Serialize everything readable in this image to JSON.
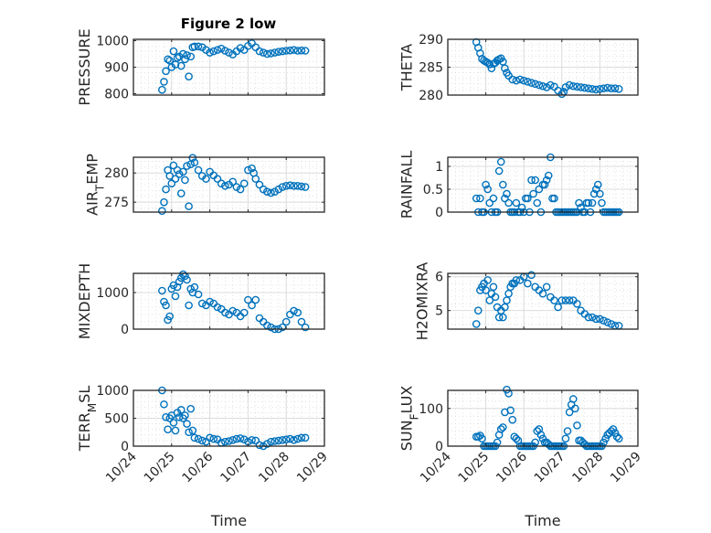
{
  "chart_data": [
    {
      "type": "scatter",
      "title": "Figure 2 low",
      "ylabel": "PRESSURE",
      "ylabel_parts": [
        {
          "t": "PRESSURE",
          "sub": ""
        }
      ],
      "yticks": [
        800,
        900,
        1000
      ],
      "ytick_labels": [
        "800",
        "900",
        "1000"
      ],
      "ylim": [
        795,
        1005
      ],
      "x": [
        24.75,
        24.8,
        24.85,
        24.9,
        24.95,
        25.0,
        25.05,
        25.1,
        25.15,
        25.2,
        25.25,
        25.3,
        25.35,
        25.4,
        25.45,
        25.5,
        25.55,
        25.6,
        25.7,
        25.8,
        25.9,
        26.0,
        26.1,
        26.2,
        26.3,
        26.4,
        26.5,
        26.6,
        26.7,
        26.8,
        26.9,
        27.0,
        27.1,
        27.2,
        27.3,
        27.4,
        27.5,
        27.6,
        27.7,
        27.8,
        27.9,
        28.0,
        28.1,
        28.2,
        28.3,
        28.4,
        28.5
      ],
      "values": [
        815,
        845,
        885,
        930,
        925,
        900,
        960,
        910,
        935,
        940,
        905,
        950,
        930,
        945,
        865,
        940,
        975,
        978,
        978,
        975,
        965,
        955,
        960,
        965,
        970,
        962,
        955,
        948,
        960,
        972,
        965,
        980,
        990,
        975,
        960,
        955,
        950,
        952,
        955,
        958,
        960,
        962,
        963,
        965,
        962,
        963,
        962
      ]
    },
    {
      "type": "scatter",
      "title": "",
      "ylabel": "THETA",
      "ylabel_parts": [
        {
          "t": "THETA",
          "sub": ""
        }
      ],
      "yticks": [
        280,
        285,
        290
      ],
      "ytick_labels": [
        "280",
        "285",
        "290"
      ],
      "ylim": [
        280,
        290
      ],
      "x": [
        24.75,
        24.8,
        24.85,
        24.9,
        24.95,
        25.0,
        25.05,
        25.1,
        25.15,
        25.2,
        25.25,
        25.3,
        25.35,
        25.4,
        25.45,
        25.5,
        25.55,
        25.6,
        25.7,
        25.8,
        25.9,
        26.0,
        26.1,
        26.2,
        26.3,
        26.4,
        26.5,
        26.6,
        26.7,
        26.8,
        26.9,
        27.0,
        27.05,
        27.1,
        27.2,
        27.3,
        27.4,
        27.5,
        27.6,
        27.7,
        27.8,
        27.9,
        28.0,
        28.1,
        28.2,
        28.3,
        28.4,
        28.5
      ],
      "values": [
        289.5,
        288.5,
        287.5,
        286.5,
        286.2,
        286.0,
        285.8,
        285.5,
        284.8,
        285.6,
        285.8,
        286.2,
        286.4,
        286.6,
        286.0,
        284.8,
        284.0,
        283.5,
        282.8,
        282.6,
        282.8,
        282.6,
        282.4,
        282.2,
        282.0,
        281.8,
        281.6,
        281.4,
        281.8,
        281.5,
        280.8,
        280.2,
        280.6,
        281.4,
        281.8,
        281.6,
        281.5,
        281.4,
        281.3,
        281.2,
        281.1,
        281.0,
        281.1,
        281.2,
        281.3,
        281.2,
        281.2,
        281.1
      ]
    },
    {
      "type": "scatter",
      "title": "",
      "ylabel": "AIR_TEMP",
      "ylabel_parts": [
        {
          "t": "AIR",
          "sub": ""
        },
        {
          "t": "T",
          "sub": "sub"
        },
        {
          "t": "EMP",
          "sub": ""
        }
      ],
      "yticks": [
        275,
        280
      ],
      "ytick_labels": [
        "275",
        "280"
      ],
      "ylim": [
        273.3,
        282.7
      ],
      "x": [
        24.75,
        24.8,
        24.85,
        24.9,
        24.95,
        25.0,
        25.05,
        25.1,
        25.15,
        25.2,
        25.25,
        25.3,
        25.35,
        25.4,
        25.45,
        25.5,
        25.55,
        25.6,
        25.7,
        25.8,
        25.9,
        26.0,
        26.1,
        26.2,
        26.3,
        26.4,
        26.5,
        26.6,
        26.7,
        26.8,
        26.9,
        27.0,
        27.1,
        27.15,
        27.2,
        27.3,
        27.4,
        27.5,
        27.6,
        27.7,
        27.8,
        27.9,
        28.0,
        28.1,
        28.2,
        28.3,
        28.4,
        28.5
      ],
      "values": [
        273.5,
        275.0,
        277.2,
        280.5,
        279.5,
        278.2,
        281.3,
        279.0,
        280.5,
        279.8,
        276.5,
        280.2,
        278.8,
        281.2,
        274.3,
        281.5,
        282.6,
        281.8,
        280.5,
        279.5,
        279.0,
        280.2,
        279.6,
        279.0,
        278.2,
        277.8,
        278.0,
        278.5,
        277.6,
        277.2,
        278.2,
        280.5,
        280.8,
        280.0,
        279.0,
        278.0,
        277.2,
        276.8,
        276.6,
        276.8,
        277.2,
        277.6,
        277.8,
        277.9,
        277.8,
        277.8,
        277.7,
        277.6
      ]
    },
    {
      "type": "scatter",
      "title": "",
      "ylabel": "RAINFALL",
      "ylabel_parts": [
        {
          "t": "RAINFALL",
          "sub": ""
        }
      ],
      "yticks": [
        0,
        0.5,
        1
      ],
      "ytick_labels": [
        "0",
        "0.5",
        "1"
      ],
      "ylim": [
        0,
        1.2
      ],
      "x": [
        24.75,
        24.8,
        24.85,
        24.9,
        24.95,
        25.0,
        25.05,
        25.1,
        25.15,
        25.2,
        25.25,
        25.3,
        25.35,
        25.4,
        25.45,
        25.5,
        25.55,
        25.6,
        25.65,
        25.7,
        25.75,
        25.8,
        25.85,
        25.9,
        25.95,
        26.0,
        26.05,
        26.1,
        26.15,
        26.2,
        26.25,
        26.3,
        26.35,
        26.4,
        26.45,
        26.5,
        26.55,
        26.6,
        26.65,
        26.7,
        26.75,
        26.8,
        26.85,
        26.9,
        26.95,
        27.0,
        27.05,
        27.1,
        27.15,
        27.2,
        27.25,
        27.3,
        27.35,
        27.4,
        27.45,
        27.5,
        27.55,
        27.6,
        27.65,
        27.7,
        27.75,
        27.8,
        27.85,
        27.9,
        27.95,
        28.0,
        28.05,
        28.1,
        28.15,
        28.2,
        28.25,
        28.3,
        28.35,
        28.4,
        28.45,
        28.5
      ],
      "values": [
        0.3,
        0,
        0.3,
        0,
        0,
        0.6,
        0.5,
        0.2,
        0,
        0.3,
        0,
        0,
        0.9,
        1.1,
        0.6,
        0.3,
        0.4,
        0.2,
        0,
        0,
        0,
        0.2,
        0,
        0,
        0.1,
        0,
        0.3,
        0.3,
        0,
        0.7,
        0.4,
        0.7,
        0.2,
        0.5,
        0,
        0.6,
        0.6,
        0.7,
        0.8,
        1.2,
        0.3,
        0.3,
        0,
        0,
        0,
        0,
        0,
        0,
        0,
        0,
        0,
        0,
        0,
        0,
        0.2,
        0.1,
        0,
        0,
        0.2,
        0.2,
        0,
        0.2,
        0.4,
        0.5,
        0.6,
        0.4,
        0.2,
        0,
        0,
        0,
        0,
        0,
        0,
        0,
        0,
        0
      ]
    },
    {
      "type": "scatter",
      "title": "",
      "ylabel": "MIXDEPTH",
      "ylabel_parts": [
        {
          "t": "MIXDEPTH",
          "sub": ""
        }
      ],
      "yticks": [
        0,
        1000
      ],
      "ytick_labels": [
        "0",
        "1000"
      ],
      "ylim": [
        0,
        1525
      ],
      "x": [
        24.75,
        24.8,
        24.85,
        24.9,
        24.95,
        25.0,
        25.05,
        25.1,
        25.15,
        25.2,
        25.25,
        25.3,
        25.35,
        25.4,
        25.45,
        25.5,
        25.55,
        25.6,
        25.7,
        25.8,
        25.9,
        26.0,
        26.1,
        26.2,
        26.3,
        26.4,
        26.5,
        26.6,
        26.7,
        26.8,
        26.9,
        27.0,
        27.1,
        27.2,
        27.3,
        27.4,
        27.5,
        27.6,
        27.7,
        27.8,
        27.9,
        28.0,
        28.1,
        28.2,
        28.3,
        28.4,
        28.5
      ],
      "values": [
        1050,
        750,
        650,
        250,
        350,
        1100,
        1200,
        900,
        1150,
        1300,
        1400,
        1500,
        1450,
        1350,
        650,
        1100,
        1000,
        1150,
        950,
        700,
        650,
        750,
        700,
        600,
        550,
        450,
        400,
        500,
        450,
        350,
        450,
        800,
        650,
        800,
        300,
        200,
        100,
        50,
        0,
        0,
        50,
        200,
        400,
        500,
        450,
        200,
        50
      ]
    },
    {
      "type": "scatter",
      "title": "",
      "ylabel": "H2OMIXRA",
      "ylabel_parts": [
        {
          "t": "H2OMIXRA",
          "sub": ""
        }
      ],
      "yticks": [
        5,
        6
      ],
      "ytick_labels": [
        "5",
        "6"
      ],
      "ylim": [
        4.45,
        6.1
      ],
      "x": [
        24.75,
        24.8,
        24.85,
        24.9,
        24.95,
        25.0,
        25.05,
        25.1,
        25.15,
        25.2,
        25.25,
        25.3,
        25.35,
        25.4,
        25.45,
        25.5,
        25.55,
        25.6,
        25.65,
        25.7,
        25.75,
        25.8,
        25.9,
        26.0,
        26.1,
        26.2,
        26.3,
        26.4,
        26.5,
        26.6,
        26.7,
        26.8,
        26.9,
        27.0,
        27.1,
        27.2,
        27.3,
        27.4,
        27.5,
        27.6,
        27.7,
        27.8,
        27.9,
        28.0,
        28.1,
        28.2,
        28.3,
        28.4,
        28.5
      ],
      "values": [
        4.6,
        5.0,
        5.6,
        5.7,
        5.8,
        5.6,
        5.9,
        5.3,
        5.5,
        5.7,
        5.4,
        5.1,
        4.8,
        5.0,
        4.8,
        5.1,
        5.3,
        5.5,
        5.7,
        5.8,
        5.8,
        5.9,
        5.9,
        6.0,
        5.8,
        6.05,
        5.7,
        5.6,
        5.5,
        5.7,
        5.4,
        5.3,
        5.1,
        5.3,
        5.3,
        5.3,
        5.3,
        5.2,
        5.0,
        4.9,
        4.8,
        4.8,
        4.75,
        4.75,
        4.7,
        4.65,
        4.6,
        4.55,
        4.55
      ]
    },
    {
      "type": "scatter",
      "title": "",
      "ylabel": "TERR_MSL",
      "ylabel_parts": [
        {
          "t": "TERR",
          "sub": ""
        },
        {
          "t": "M",
          "sub": "sub"
        },
        {
          "t": "SL",
          "sub": ""
        }
      ],
      "yticks": [
        0,
        500,
        1000
      ],
      "ytick_labels": [
        "0",
        "500",
        "1000"
      ],
      "ylim": [
        0,
        1000
      ],
      "xticks": [
        24,
        25,
        26,
        27,
        28,
        29
      ],
      "xtick_labels": [
        "10/24",
        "10/25",
        "10/26",
        "10/27",
        "10/28",
        "10/29"
      ],
      "xlabel": "Time",
      "x": [
        24.75,
        24.8,
        24.85,
        24.9,
        24.95,
        25.0,
        25.05,
        25.1,
        25.15,
        25.2,
        25.25,
        25.3,
        25.35,
        25.4,
        25.45,
        25.5,
        25.55,
        25.6,
        25.7,
        25.8,
        25.9,
        26.0,
        26.1,
        26.2,
        26.3,
        26.4,
        26.5,
        26.6,
        26.7,
        26.8,
        26.9,
        27.0,
        27.1,
        27.2,
        27.3,
        27.4,
        27.5,
        27.6,
        27.7,
        27.8,
        27.9,
        28.0,
        28.1,
        28.2,
        28.3,
        28.4,
        28.5
      ],
      "values": [
        1000,
        750,
        520,
        300,
        500,
        550,
        420,
        280,
        600,
        520,
        650,
        500,
        550,
        400,
        250,
        670,
        280,
        150,
        130,
        100,
        80,
        150,
        130,
        120,
        60,
        80,
        90,
        110,
        130,
        140,
        120,
        80,
        110,
        100,
        20,
        0,
        40,
        80,
        90,
        100,
        110,
        120,
        130,
        110,
        130,
        150,
        150
      ]
    },
    {
      "type": "scatter",
      "title": "",
      "ylabel": "SUN_FLUX",
      "ylabel_parts": [
        {
          "t": "SUN",
          "sub": ""
        },
        {
          "t": "F",
          "sub": "sub"
        },
        {
          "t": "LUX",
          "sub": ""
        }
      ],
      "yticks": [
        0,
        100
      ],
      "ytick_labels": [
        "0",
        "100"
      ],
      "ylim": [
        0,
        148
      ],
      "xticks": [
        24,
        25,
        26,
        27,
        28,
        29
      ],
      "xtick_labels": [
        "10/24",
        "10/25",
        "10/26",
        "10/27",
        "10/28",
        "10/29"
      ],
      "xlabel": "Time",
      "x": [
        24.75,
        24.8,
        24.85,
        24.9,
        24.95,
        25.0,
        25.05,
        25.1,
        25.15,
        25.2,
        25.25,
        25.3,
        25.35,
        25.4,
        25.45,
        25.5,
        25.55,
        25.6,
        25.65,
        25.7,
        25.75,
        25.8,
        25.85,
        25.9,
        25.95,
        26.0,
        26.05,
        26.1,
        26.15,
        26.2,
        26.25,
        26.3,
        26.35,
        26.4,
        26.45,
        26.5,
        26.55,
        26.6,
        26.65,
        26.7,
        26.75,
        26.8,
        26.85,
        26.9,
        26.95,
        27.0,
        27.05,
        27.1,
        27.15,
        27.2,
        27.25,
        27.3,
        27.35,
        27.4,
        27.45,
        27.5,
        27.55,
        27.6,
        27.65,
        27.7,
        27.75,
        27.8,
        27.85,
        27.9,
        27.95,
        28.0,
        28.05,
        28.1,
        28.15,
        28.2,
        28.25,
        28.3,
        28.35,
        28.4,
        28.45,
        28.5
      ],
      "values": [
        25,
        25,
        28,
        20,
        0,
        0,
        0,
        0,
        0,
        0,
        0,
        10,
        30,
        45,
        50,
        90,
        150,
        140,
        95,
        70,
        25,
        20,
        15,
        0,
        0,
        0,
        0,
        0,
        0,
        0,
        0,
        10,
        40,
        45,
        30,
        20,
        10,
        10,
        5,
        0,
        0,
        0,
        0,
        0,
        0,
        0,
        0,
        20,
        40,
        90,
        110,
        125,
        100,
        55,
        15,
        15,
        10,
        5,
        0,
        0,
        0,
        0,
        0,
        0,
        0,
        0,
        0,
        10,
        20,
        30,
        35,
        40,
        45,
        35,
        25,
        20
      ]
    }
  ]
}
